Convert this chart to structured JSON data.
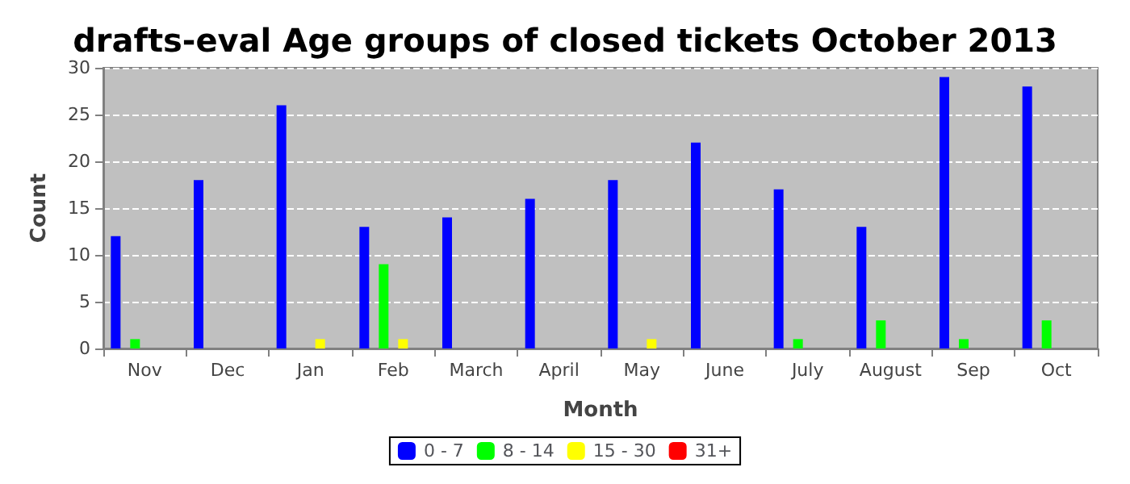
{
  "chart_data": {
    "type": "bar",
    "title": "drafts-eval Age groups of closed tickets October 2013",
    "xlabel": "Month",
    "ylabel": "Count",
    "categories": [
      "Nov",
      "Dec",
      "Jan",
      "Feb",
      "March",
      "April",
      "May",
      "June",
      "July",
      "August",
      "Sep",
      "Oct"
    ],
    "series": [
      {
        "name": "0 - 7",
        "color": "#0000ff",
        "values": [
          12,
          18,
          26,
          13,
          14,
          16,
          18,
          22,
          17,
          13,
          29,
          28
        ]
      },
      {
        "name": "8 - 14",
        "color": "#00ff00",
        "values": [
          1,
          0,
          0,
          9,
          0,
          0,
          0,
          0,
          1,
          3,
          1,
          3
        ]
      },
      {
        "name": "15 - 30",
        "color": "#ffff00",
        "values": [
          0,
          0,
          1,
          1,
          0,
          0,
          1,
          0,
          0,
          0,
          0,
          0
        ]
      },
      {
        "name": "31+",
        "color": "#ff0000",
        "values": [
          0,
          0,
          0,
          0,
          0,
          0,
          0,
          0,
          0,
          0,
          0,
          0
        ]
      }
    ],
    "ylim": [
      0,
      30
    ],
    "yticks": [
      0,
      5,
      10,
      15,
      20,
      25,
      30
    ],
    "grid": "y",
    "legend": "bottom"
  }
}
